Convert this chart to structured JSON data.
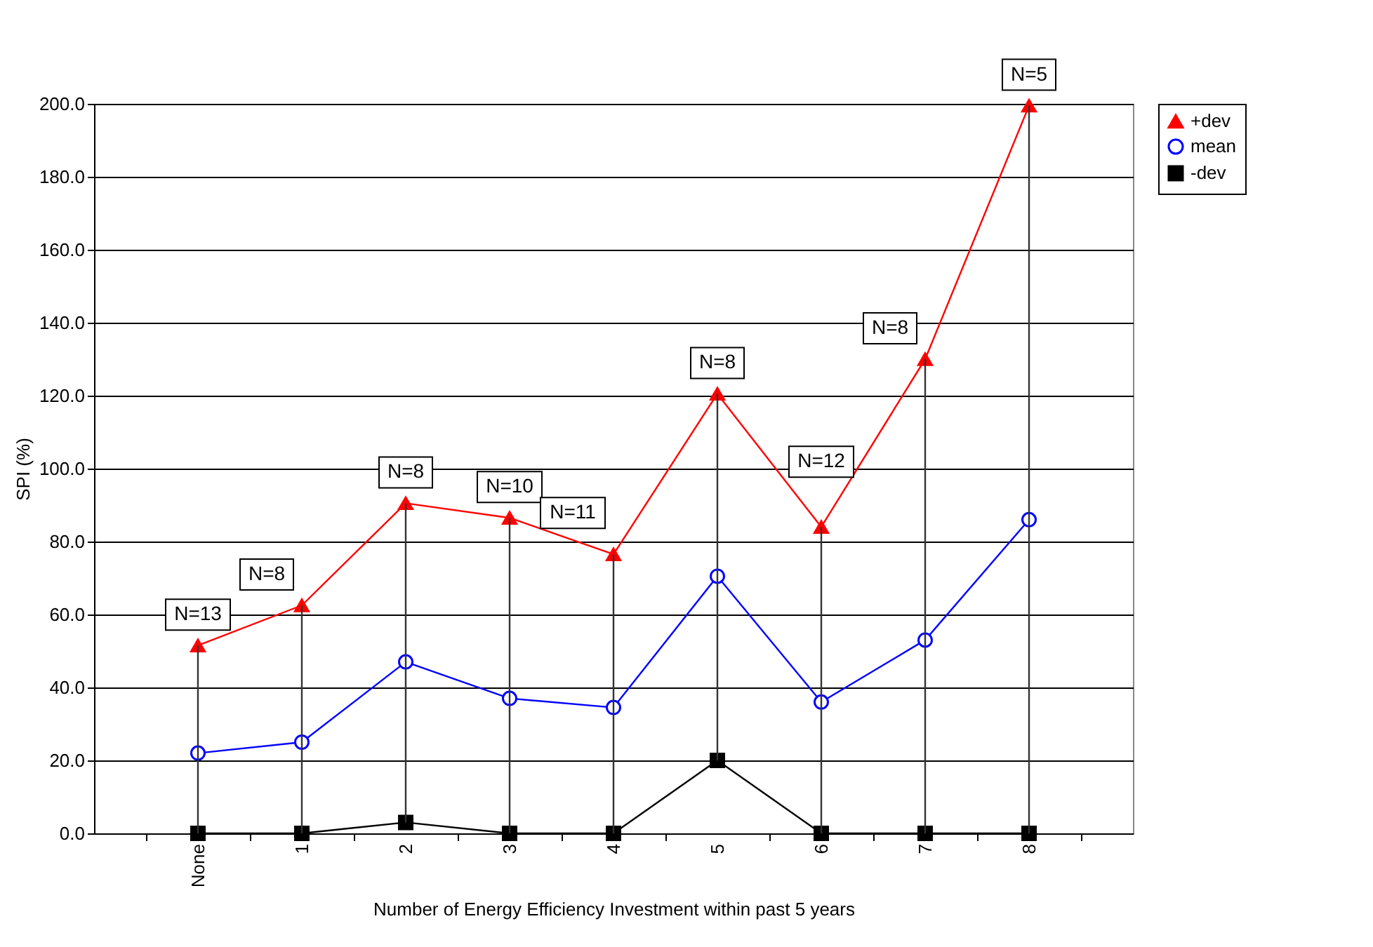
{
  "chart_data": {
    "type": "line",
    "xlabel": "Number of Energy Efficiency Investment within past 5 years",
    "ylabel": "SPI (%)",
    "categories": [
      "None",
      "1",
      "2",
      "3",
      "4",
      "5",
      "6",
      "7",
      "8"
    ],
    "series": [
      {
        "name": "+dev",
        "color": "#ff0000",
        "marker": "triangle",
        "values": [
          51.5,
          62.5,
          90.5,
          86.5,
          76.5,
          120.5,
          84,
          130,
          199.5
        ]
      },
      {
        "name": "mean",
        "color": "#0000ff",
        "marker": "circle",
        "values": [
          22,
          25,
          47,
          37,
          34.5,
          70.5,
          36,
          53,
          86
        ],
        "errors": [
          [
            0,
            51.5
          ],
          [
            0,
            62.5
          ],
          [
            3,
            90.5
          ],
          [
            0,
            86.5
          ],
          [
            0,
            76.5
          ],
          [
            20,
            120.5
          ],
          [
            0,
            84
          ],
          [
            0,
            130
          ],
          [
            0,
            199.5
          ]
        ]
      },
      {
        "name": "-dev",
        "color": "#000000",
        "marker": "square",
        "values": [
          0,
          0,
          3,
          0,
          0,
          20,
          0,
          0,
          0
        ]
      }
    ],
    "ylim": [
      0,
      200
    ],
    "yticks": [
      {
        "value": 0,
        "label": "0.0"
      },
      {
        "value": 20,
        "label": "20.0"
      },
      {
        "value": 40,
        "label": "40.0"
      },
      {
        "value": 60,
        "label": "60.0"
      },
      {
        "value": 80,
        "label": "80.0"
      },
      {
        "value": 100,
        "label": "100.0"
      },
      {
        "value": 120,
        "label": "120.0"
      },
      {
        "value": 140,
        "label": "140.0"
      },
      {
        "value": 160,
        "label": "160.0"
      },
      {
        "value": 180,
        "label": "180.0"
      },
      {
        "value": 200,
        "label": "200.0"
      }
    ],
    "grid": "y",
    "legend": "right",
    "annotations": [
      {
        "text": "N=13",
        "x": "None",
        "y": 51.5
      },
      {
        "text": "N=8",
        "x": "1",
        "y": 62.5
      },
      {
        "text": "N=8",
        "x": "2",
        "y": 90.5
      },
      {
        "text": "N=10",
        "x": "3",
        "y": 86.5
      },
      {
        "text": "N=11",
        "x": "4",
        "y": 76.5
      },
      {
        "text": "N=8",
        "x": "5",
        "y": 120.5
      },
      {
        "text": "N=12",
        "x": "6",
        "y": 84
      },
      {
        "text": "N=8",
        "x": "7",
        "y": 130
      },
      {
        "text": "N=5",
        "x": "8",
        "y": 199.5
      }
    ]
  }
}
